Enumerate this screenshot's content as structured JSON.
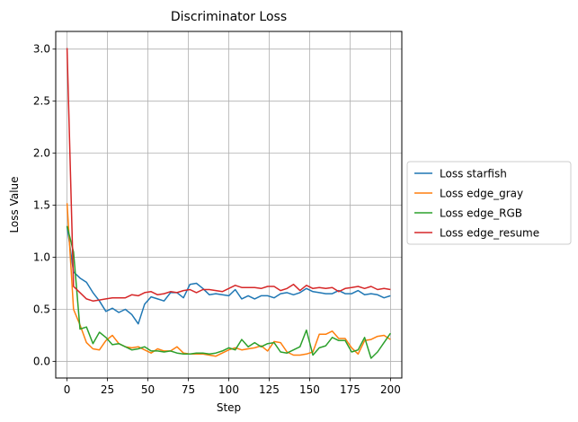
{
  "chart_data": {
    "type": "line",
    "title": "Discriminator Loss",
    "xlabel": "Step",
    "ylabel": "Loss Value",
    "xlim": [
      -7,
      207
    ],
    "ylim": [
      -0.16,
      3.17
    ],
    "xticks": [
      0,
      25,
      50,
      75,
      100,
      125,
      150,
      175,
      200
    ],
    "yticks": [
      0.0,
      0.5,
      1.0,
      1.5,
      2.0,
      2.5,
      3.0
    ],
    "ytick_labels": [
      "0.0",
      "0.5",
      "1.0",
      "1.5",
      "2.0",
      "2.5",
      "3.0"
    ],
    "grid": true,
    "legend_position": "outside right",
    "series": [
      {
        "name": "Loss starfish",
        "color": "#1f77b4",
        "x": [
          0,
          4,
          8,
          12,
          16,
          20,
          24,
          28,
          32,
          36,
          40,
          44,
          48,
          52,
          56,
          60,
          64,
          68,
          72,
          76,
          80,
          84,
          88,
          92,
          96,
          100,
          104,
          108,
          112,
          116,
          120,
          124,
          128,
          132,
          136,
          140,
          144,
          148,
          152,
          156,
          160,
          164,
          168,
          172,
          176,
          180,
          184,
          188,
          192,
          196,
          200
        ],
        "y": [
          1.3,
          0.86,
          0.8,
          0.76,
          0.66,
          0.58,
          0.48,
          0.51,
          0.47,
          0.5,
          0.45,
          0.36,
          0.55,
          0.62,
          0.6,
          0.58,
          0.66,
          0.66,
          0.61,
          0.74,
          0.75,
          0.7,
          0.64,
          0.65,
          0.64,
          0.63,
          0.69,
          0.6,
          0.63,
          0.6,
          0.63,
          0.63,
          0.61,
          0.65,
          0.66,
          0.64,
          0.66,
          0.7,
          0.67,
          0.66,
          0.65,
          0.65,
          0.68,
          0.65,
          0.65,
          0.68,
          0.64,
          0.65,
          0.64,
          0.61,
          0.63
        ]
      },
      {
        "name": "Loss edge_gray",
        "color": "#ff7f0e",
        "x": [
          0,
          4,
          8,
          12,
          16,
          20,
          24,
          28,
          32,
          36,
          40,
          44,
          48,
          52,
          56,
          60,
          64,
          68,
          72,
          76,
          80,
          84,
          88,
          92,
          96,
          100,
          104,
          108,
          112,
          116,
          120,
          124,
          128,
          132,
          136,
          140,
          144,
          148,
          152,
          156,
          160,
          164,
          168,
          172,
          176,
          180,
          184,
          188,
          192,
          196,
          200
        ],
        "y": [
          1.52,
          0.5,
          0.35,
          0.18,
          0.12,
          0.11,
          0.2,
          0.25,
          0.17,
          0.14,
          0.13,
          0.14,
          0.11,
          0.08,
          0.12,
          0.1,
          0.1,
          0.14,
          0.08,
          0.07,
          0.07,
          0.07,
          0.06,
          0.05,
          0.08,
          0.11,
          0.13,
          0.11,
          0.12,
          0.13,
          0.15,
          0.1,
          0.19,
          0.18,
          0.09,
          0.06,
          0.06,
          0.07,
          0.09,
          0.26,
          0.26,
          0.29,
          0.22,
          0.22,
          0.13,
          0.07,
          0.2,
          0.21,
          0.24,
          0.25,
          0.21
        ]
      },
      {
        "name": "Loss edge_RGB",
        "color": "#2ca02c",
        "x": [
          0,
          4,
          8,
          12,
          16,
          20,
          24,
          28,
          32,
          36,
          40,
          44,
          48,
          52,
          56,
          60,
          64,
          68,
          72,
          76,
          80,
          84,
          88,
          92,
          96,
          100,
          104,
          108,
          112,
          116,
          120,
          124,
          128,
          132,
          136,
          140,
          144,
          148,
          152,
          156,
          160,
          164,
          168,
          172,
          176,
          180,
          184,
          188,
          192,
          196,
          200
        ],
        "y": [
          1.3,
          1.05,
          0.31,
          0.33,
          0.17,
          0.28,
          0.23,
          0.16,
          0.17,
          0.14,
          0.11,
          0.12,
          0.14,
          0.1,
          0.1,
          0.09,
          0.1,
          0.08,
          0.07,
          0.07,
          0.08,
          0.08,
          0.07,
          0.08,
          0.1,
          0.13,
          0.11,
          0.21,
          0.14,
          0.18,
          0.14,
          0.17,
          0.18,
          0.09,
          0.08,
          0.11,
          0.14,
          0.3,
          0.06,
          0.13,
          0.15,
          0.23,
          0.2,
          0.2,
          0.09,
          0.11,
          0.23,
          0.03,
          0.09,
          0.18,
          0.27
        ]
      },
      {
        "name": "Loss edge_resume",
        "color": "#d62728",
        "x": [
          0,
          4,
          8,
          12,
          16,
          20,
          24,
          28,
          32,
          36,
          40,
          44,
          48,
          52,
          56,
          60,
          64,
          68,
          72,
          76,
          80,
          84,
          88,
          92,
          96,
          100,
          104,
          108,
          112,
          116,
          120,
          124,
          128,
          132,
          136,
          140,
          144,
          148,
          152,
          156,
          160,
          164,
          168,
          172,
          176,
          180,
          184,
          188,
          192,
          196,
          200
        ],
        "y": [
          3.01,
          0.72,
          0.66,
          0.6,
          0.58,
          0.59,
          0.6,
          0.61,
          0.61,
          0.61,
          0.64,
          0.63,
          0.66,
          0.67,
          0.64,
          0.65,
          0.67,
          0.66,
          0.68,
          0.69,
          0.66,
          0.69,
          0.69,
          0.68,
          0.67,
          0.7,
          0.73,
          0.71,
          0.71,
          0.71,
          0.7,
          0.72,
          0.72,
          0.68,
          0.7,
          0.74,
          0.68,
          0.73,
          0.7,
          0.71,
          0.7,
          0.71,
          0.67,
          0.7,
          0.71,
          0.72,
          0.7,
          0.72,
          0.69,
          0.7,
          0.69
        ]
      }
    ]
  }
}
